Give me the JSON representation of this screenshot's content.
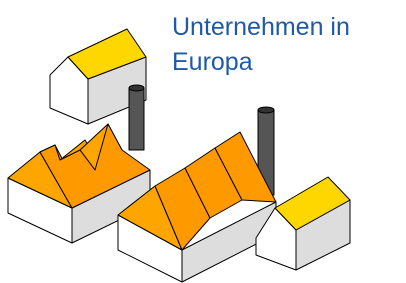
{
  "title": [
    "Unternehmen in",
    "Europa"
  ]
}
